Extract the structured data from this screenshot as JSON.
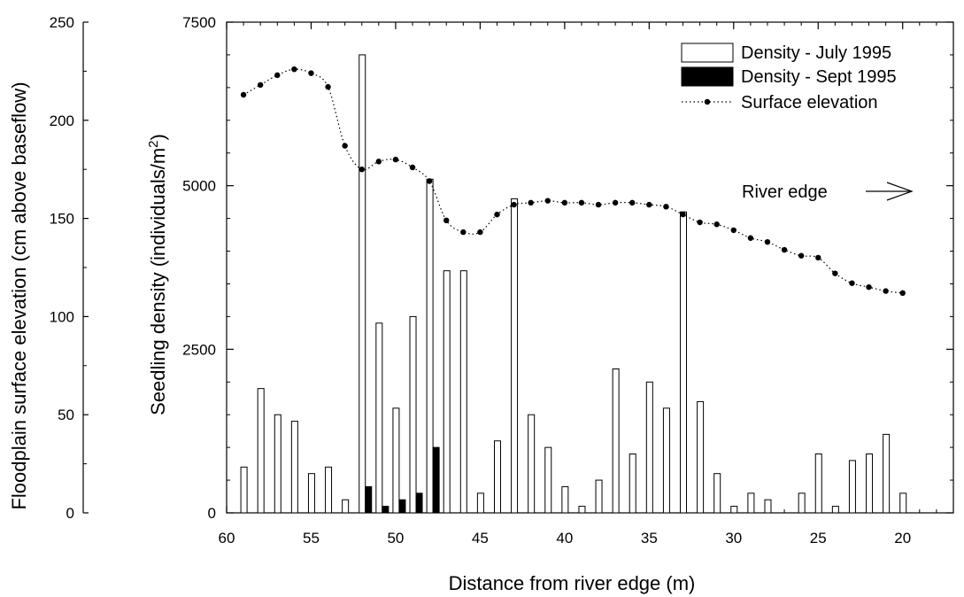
{
  "chart_data": {
    "type": "bar",
    "xlabel": "Distance from river edge (m)",
    "y_left_label": "Floodplain surface elevation  (cm above baseflow)",
    "y_right_label_main": "Seedling density  (individuals/m",
    "y_right_label_sup": "2",
    "y_right_label_end": ")",
    "xlim": [
      60,
      17
    ],
    "x_ticks": [
      "60",
      "55",
      "50",
      "45",
      "40",
      "35",
      "30",
      "25",
      "20"
    ],
    "x_tick_values": [
      60,
      55,
      50,
      45,
      40,
      35,
      30,
      25,
      20
    ],
    "y_left_lim": [
      0,
      250
    ],
    "y_left_ticks": [
      "0",
      "50",
      "100",
      "150",
      "200",
      "250"
    ],
    "y_left_tick_values": [
      0,
      50,
      100,
      150,
      200,
      250
    ],
    "y_right_lim": [
      0,
      7500
    ],
    "y_right_ticks": [
      "0",
      "2500",
      "5000",
      "7500"
    ],
    "y_right_tick_values": [
      0,
      2500,
      5000,
      7500
    ],
    "grid": false,
    "legend_position": "top-right",
    "series": [
      {
        "name": "Density - July 1995",
        "style": "open-bar",
        "color": "#ffffff",
        "points": [
          [
            59,
            700
          ],
          [
            58,
            1900
          ],
          [
            57,
            1500
          ],
          [
            56,
            1400
          ],
          [
            55,
            600
          ],
          [
            54,
            700
          ],
          [
            53,
            200
          ],
          [
            52,
            7000
          ],
          [
            51,
            2900
          ],
          [
            50,
            1600
          ],
          [
            49,
            3000
          ],
          [
            48,
            5100
          ],
          [
            47,
            3700
          ],
          [
            46,
            3700
          ],
          [
            45,
            300
          ],
          [
            44,
            1100
          ],
          [
            43,
            4800
          ],
          [
            42,
            1500
          ],
          [
            41,
            1000
          ],
          [
            40,
            400
          ],
          [
            39,
            100
          ],
          [
            38,
            500
          ],
          [
            37,
            2200
          ],
          [
            36,
            900
          ],
          [
            35,
            2000
          ],
          [
            34,
            1600
          ],
          [
            33,
            4600
          ],
          [
            32,
            1700
          ],
          [
            31,
            600
          ],
          [
            30,
            100
          ],
          [
            29,
            300
          ],
          [
            28,
            200
          ],
          [
            26,
            300
          ],
          [
            25,
            900
          ],
          [
            24,
            100
          ],
          [
            23,
            800
          ],
          [
            22,
            900
          ],
          [
            21,
            1200
          ],
          [
            20,
            300
          ]
        ]
      },
      {
        "name": "Density - Sept 1995",
        "style": "filled-bar",
        "color": "#000000",
        "points": [
          [
            52,
            400
          ],
          [
            51,
            100
          ],
          [
            50,
            200
          ],
          [
            49,
            300
          ],
          [
            48,
            1000
          ]
        ]
      },
      {
        "name": "Surface elevation",
        "style": "dotted-line",
        "color": "#000000",
        "axis": "left",
        "points": [
          [
            59,
            213
          ],
          [
            58,
            218
          ],
          [
            57,
            223
          ],
          [
            56,
            226
          ],
          [
            55,
            224
          ],
          [
            54,
            217
          ],
          [
            53,
            187
          ],
          [
            52,
            175
          ],
          [
            51,
            179
          ],
          [
            50,
            180
          ],
          [
            49,
            176
          ],
          [
            48,
            169
          ],
          [
            47,
            149
          ],
          [
            46,
            143
          ],
          [
            45,
            143
          ],
          [
            44,
            152
          ],
          [
            43,
            157
          ],
          [
            42,
            158
          ],
          [
            41,
            159
          ],
          [
            40,
            158
          ],
          [
            39,
            158
          ],
          [
            38,
            157
          ],
          [
            37,
            158
          ],
          [
            36,
            158
          ],
          [
            35,
            157
          ],
          [
            34,
            156
          ],
          [
            33,
            152
          ],
          [
            32,
            148
          ],
          [
            31,
            147
          ],
          [
            30,
            144
          ],
          [
            29,
            140
          ],
          [
            28,
            138
          ],
          [
            27,
            134
          ],
          [
            26,
            131
          ],
          [
            25,
            130
          ],
          [
            24,
            122
          ],
          [
            23,
            117
          ],
          [
            22,
            115
          ],
          [
            21,
            113
          ],
          [
            20,
            112
          ]
        ]
      }
    ],
    "annotations": [
      {
        "text": "River edge",
        "arrow": "right"
      }
    ]
  }
}
